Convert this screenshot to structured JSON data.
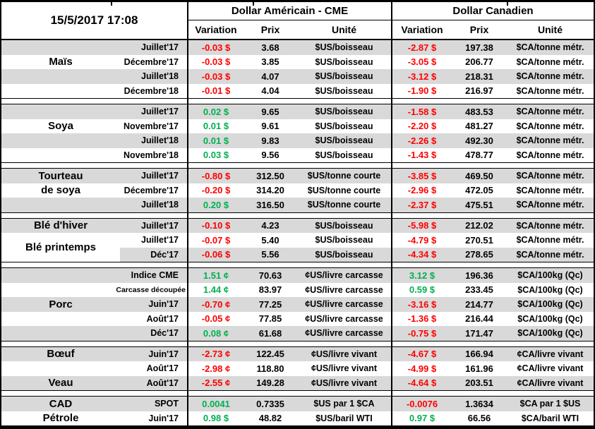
{
  "header": {
    "timestamp": "15/5/2017 17:08",
    "usd_group_title": "Dollar Américain - CME",
    "cad_group_title": "Dollar Canadien",
    "col_variation": "Variation",
    "col_prix": "Prix",
    "col_unite": "Unité"
  },
  "colors": {
    "positive": "#00B050",
    "negative": "#FF0000",
    "row_shade": "#D9D9D9",
    "border": "#000000"
  },
  "chart_data": {
    "type": "table",
    "timestamp": "15/5/2017 17:08",
    "column_groups": [
      "Dollar Américain - CME",
      "Dollar Canadien"
    ],
    "columns_per_group": [
      "Variation",
      "Prix",
      "Unité"
    ],
    "sections": [
      {
        "id": "mais",
        "labels": [
          {
            "text": "Maïs",
            "row": 1,
            "span": 1
          }
        ],
        "rows": [
          {
            "month": "Juillet'17",
            "us": [
              "-0.03 $",
              "3.68",
              "$US/boisseau"
            ],
            "ca": [
              "-2.87 $",
              "197.38",
              "$CA/tonne métr."
            ]
          },
          {
            "month": "Décembre'17",
            "us": [
              "-0.03 $",
              "3.85",
              "$US/boisseau"
            ],
            "ca": [
              "-3.05 $",
              "206.77",
              "$CA/tonne métr."
            ]
          },
          {
            "month": "Juillet'18",
            "us": [
              "-0.03 $",
              "4.07",
              "$US/boisseau"
            ],
            "ca": [
              "-3.12 $",
              "218.31",
              "$CA/tonne métr."
            ]
          },
          {
            "month": "Décembre'18",
            "us": [
              "-0.01 $",
              "4.04",
              "$US/boisseau"
            ],
            "ca": [
              "-1.90 $",
              "216.97",
              "$CA/tonne métr."
            ]
          }
        ]
      },
      {
        "id": "soya",
        "labels": [
          {
            "text": "Soya",
            "row": 1,
            "span": 1
          }
        ],
        "rows": [
          {
            "month": "Juillet'17",
            "us": [
              "0.02 $",
              "9.65",
              "$US/boisseau"
            ],
            "ca": [
              "-1.58 $",
              "483.53",
              "$CA/tonne métr."
            ]
          },
          {
            "month": "Novembre'17",
            "us": [
              "0.01 $",
              "9.61",
              "$US/boisseau"
            ],
            "ca": [
              "-2.20 $",
              "481.27",
              "$CA/tonne métr."
            ]
          },
          {
            "month": "Juillet'18",
            "us": [
              "0.01 $",
              "9.83",
              "$US/boisseau"
            ],
            "ca": [
              "-2.26 $",
              "492.30",
              "$CA/tonne métr."
            ]
          },
          {
            "month": "Novembre'18",
            "us": [
              "0.03 $",
              "9.56",
              "$US/boisseau"
            ],
            "ca": [
              "-1.43 $",
              "478.77",
              "$CA/tonne métr."
            ]
          }
        ]
      },
      {
        "id": "tourteau-de-soya",
        "labels": [
          {
            "text": "Tourteau",
            "row": 0,
            "span": 1
          },
          {
            "text": "de soya",
            "row": 1,
            "span": 1
          }
        ],
        "rows": [
          {
            "month": "Juillet'17",
            "us": [
              "-0.80 $",
              "312.50",
              "$US/tonne courte"
            ],
            "ca": [
              "-3.85 $",
              "469.50",
              "$CA/tonne métr."
            ]
          },
          {
            "month": "Décembre'17",
            "us": [
              "-0.20 $",
              "314.20",
              "$US/tonne courte"
            ],
            "ca": [
              "-2.96 $",
              "472.05",
              "$CA/tonne métr."
            ]
          },
          {
            "month": "Juillet'18",
            "us": [
              "0.20 $",
              "316.50",
              "$US/tonne courte"
            ],
            "ca": [
              "-2.37 $",
              "475.51",
              "$CA/tonne métr."
            ]
          }
        ]
      },
      {
        "id": "ble",
        "labels": [
          {
            "text": "Blé d'hiver",
            "row": 0,
            "span": 1
          },
          {
            "text": "Blé printemps",
            "row": 1,
            "span": 2,
            "white_bg": true
          }
        ],
        "rows": [
          {
            "month": "Juillet'17",
            "us": [
              "-0.10 $",
              "4.23",
              "$US/boisseau"
            ],
            "ca": [
              "-5.98 $",
              "212.02",
              "$CA/tonne métr."
            ]
          },
          {
            "month": "Juillet'17",
            "us": [
              "-0.07 $",
              "5.40",
              "$US/boisseau"
            ],
            "ca": [
              "-4.79 $",
              "270.51",
              "$CA/tonne métr."
            ]
          },
          {
            "month": "Déc'17",
            "us": [
              "-0.06 $",
              "5.56",
              "$US/boisseau"
            ],
            "ca": [
              "-4.34 $",
              "278.65",
              "$CA/tonne métr."
            ]
          }
        ]
      },
      {
        "id": "porc",
        "labels": [
          {
            "text": "Porc",
            "row": 2,
            "span": 1
          }
        ],
        "rows": [
          {
            "month": "Indice CME",
            "us": [
              "1.51 ¢",
              "70.63",
              "¢US/livre carcasse"
            ],
            "ca": [
              "3.12 $",
              "196.36",
              "$CA/100kg (Qc)"
            ]
          },
          {
            "month": "Carcasse découpée",
            "small": true,
            "us": [
              "1.44 ¢",
              "83.97",
              "¢US/livre carcasse"
            ],
            "ca": [
              "0.59 $",
              "233.45",
              "$CA/100kg (Qc)"
            ]
          },
          {
            "month": "Juin'17",
            "us": [
              "-0.70 ¢",
              "77.25",
              "¢US/livre carcasse"
            ],
            "ca": [
              "-3.16 $",
              "214.77",
              "$CA/100kg (Qc)"
            ]
          },
          {
            "month": "Août'17",
            "us": [
              "-0.05 ¢",
              "77.85",
              "¢US/livre carcasse"
            ],
            "ca": [
              "-1.36 $",
              "216.44",
              "$CA/100kg (Qc)"
            ]
          },
          {
            "month": "Déc'17",
            "us": [
              "0.08 ¢",
              "61.68",
              "¢US/livre carcasse"
            ],
            "ca": [
              "-0.75 $",
              "171.47",
              "$CA/100kg (Qc)"
            ]
          }
        ]
      },
      {
        "id": "boeuf-veau",
        "labels": [
          {
            "text": "Bœuf",
            "row": 0,
            "span": 1
          },
          {
            "text": "Veau",
            "row": 2,
            "span": 1
          }
        ],
        "rows": [
          {
            "month": "Juin'17",
            "us": [
              "-2.73 ¢",
              "122.45",
              "¢US/livre vivant"
            ],
            "ca": [
              "-4.67 $",
              "166.94",
              "¢CA/livre vivant"
            ]
          },
          {
            "month": "Août'17",
            "us": [
              "-2.98 ¢",
              "118.80",
              "¢US/livre vivant"
            ],
            "ca": [
              "-4.99 $",
              "161.96",
              "¢CA/livre vivant"
            ]
          },
          {
            "month": "Août'17",
            "us": [
              "-2.55 ¢",
              "149.28",
              "¢US/livre vivant"
            ],
            "ca": [
              "-4.64 $",
              "203.51",
              "¢CA/livre vivant"
            ]
          }
        ]
      },
      {
        "id": "cad-petrole",
        "labels": [
          {
            "text": "CAD",
            "row": 0,
            "span": 1
          },
          {
            "text": "Pétrole",
            "row": 1,
            "span": 1
          }
        ],
        "rows": [
          {
            "month": "SPOT",
            "us": [
              "0.0041",
              "0.7335",
              "$US par 1 $CA"
            ],
            "ca": [
              "-0.0076",
              "1.3634",
              "$CA par 1 $US"
            ]
          },
          {
            "month": "Juin'17",
            "us": [
              "0.98 $",
              "48.82",
              "$US/baril WTI"
            ],
            "ca": [
              "0.97 $",
              "66.56",
              "$CA/baril WTI"
            ]
          }
        ]
      }
    ]
  }
}
